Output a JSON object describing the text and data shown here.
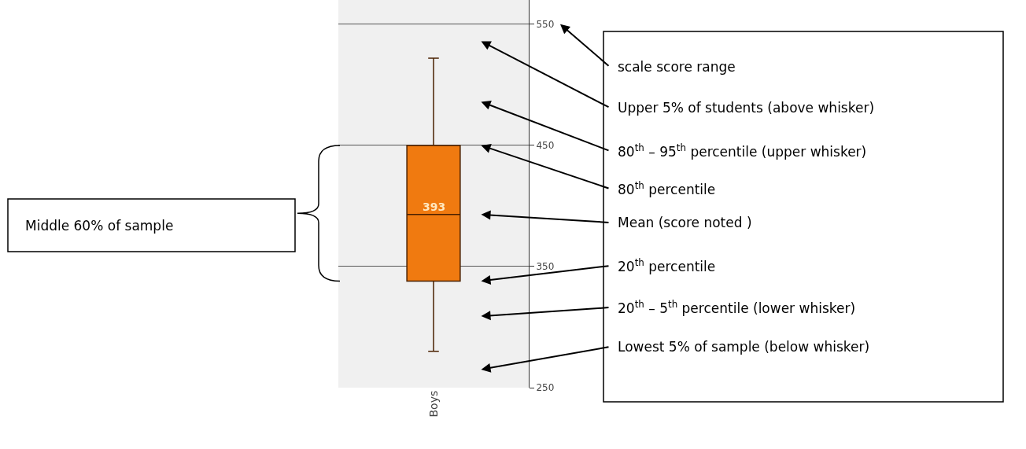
{
  "chart_data": {
    "type": "box",
    "categories": [
      "Boys"
    ],
    "series": [
      {
        "color": "#f07a10",
        "boxes": [
          {
            "low": 280,
            "q1": 338,
            "median": 393,
            "q3": 450,
            "high": 522
          }
        ]
      }
    ],
    "ylim": [
      250,
      570
    ],
    "yticks": [
      250,
      350,
      450,
      550
    ],
    "grid": "y",
    "annotations": [
      "393",
      "scale score range",
      "Upper 5% of students (above whisker)",
      "80$^{th}$ – 95$^{th}$ percentile (upper whisker)",
      "80$^{th}$ percentile",
      "Mean (score noted )",
      "20$^{th}$ percentile",
      "20$^{th}$ – 5$^{th}$ percentile (lower whisker)",
      "Lowest 5% of sample (below whisker)",
      "Middle 60% of sample"
    ]
  }
}
